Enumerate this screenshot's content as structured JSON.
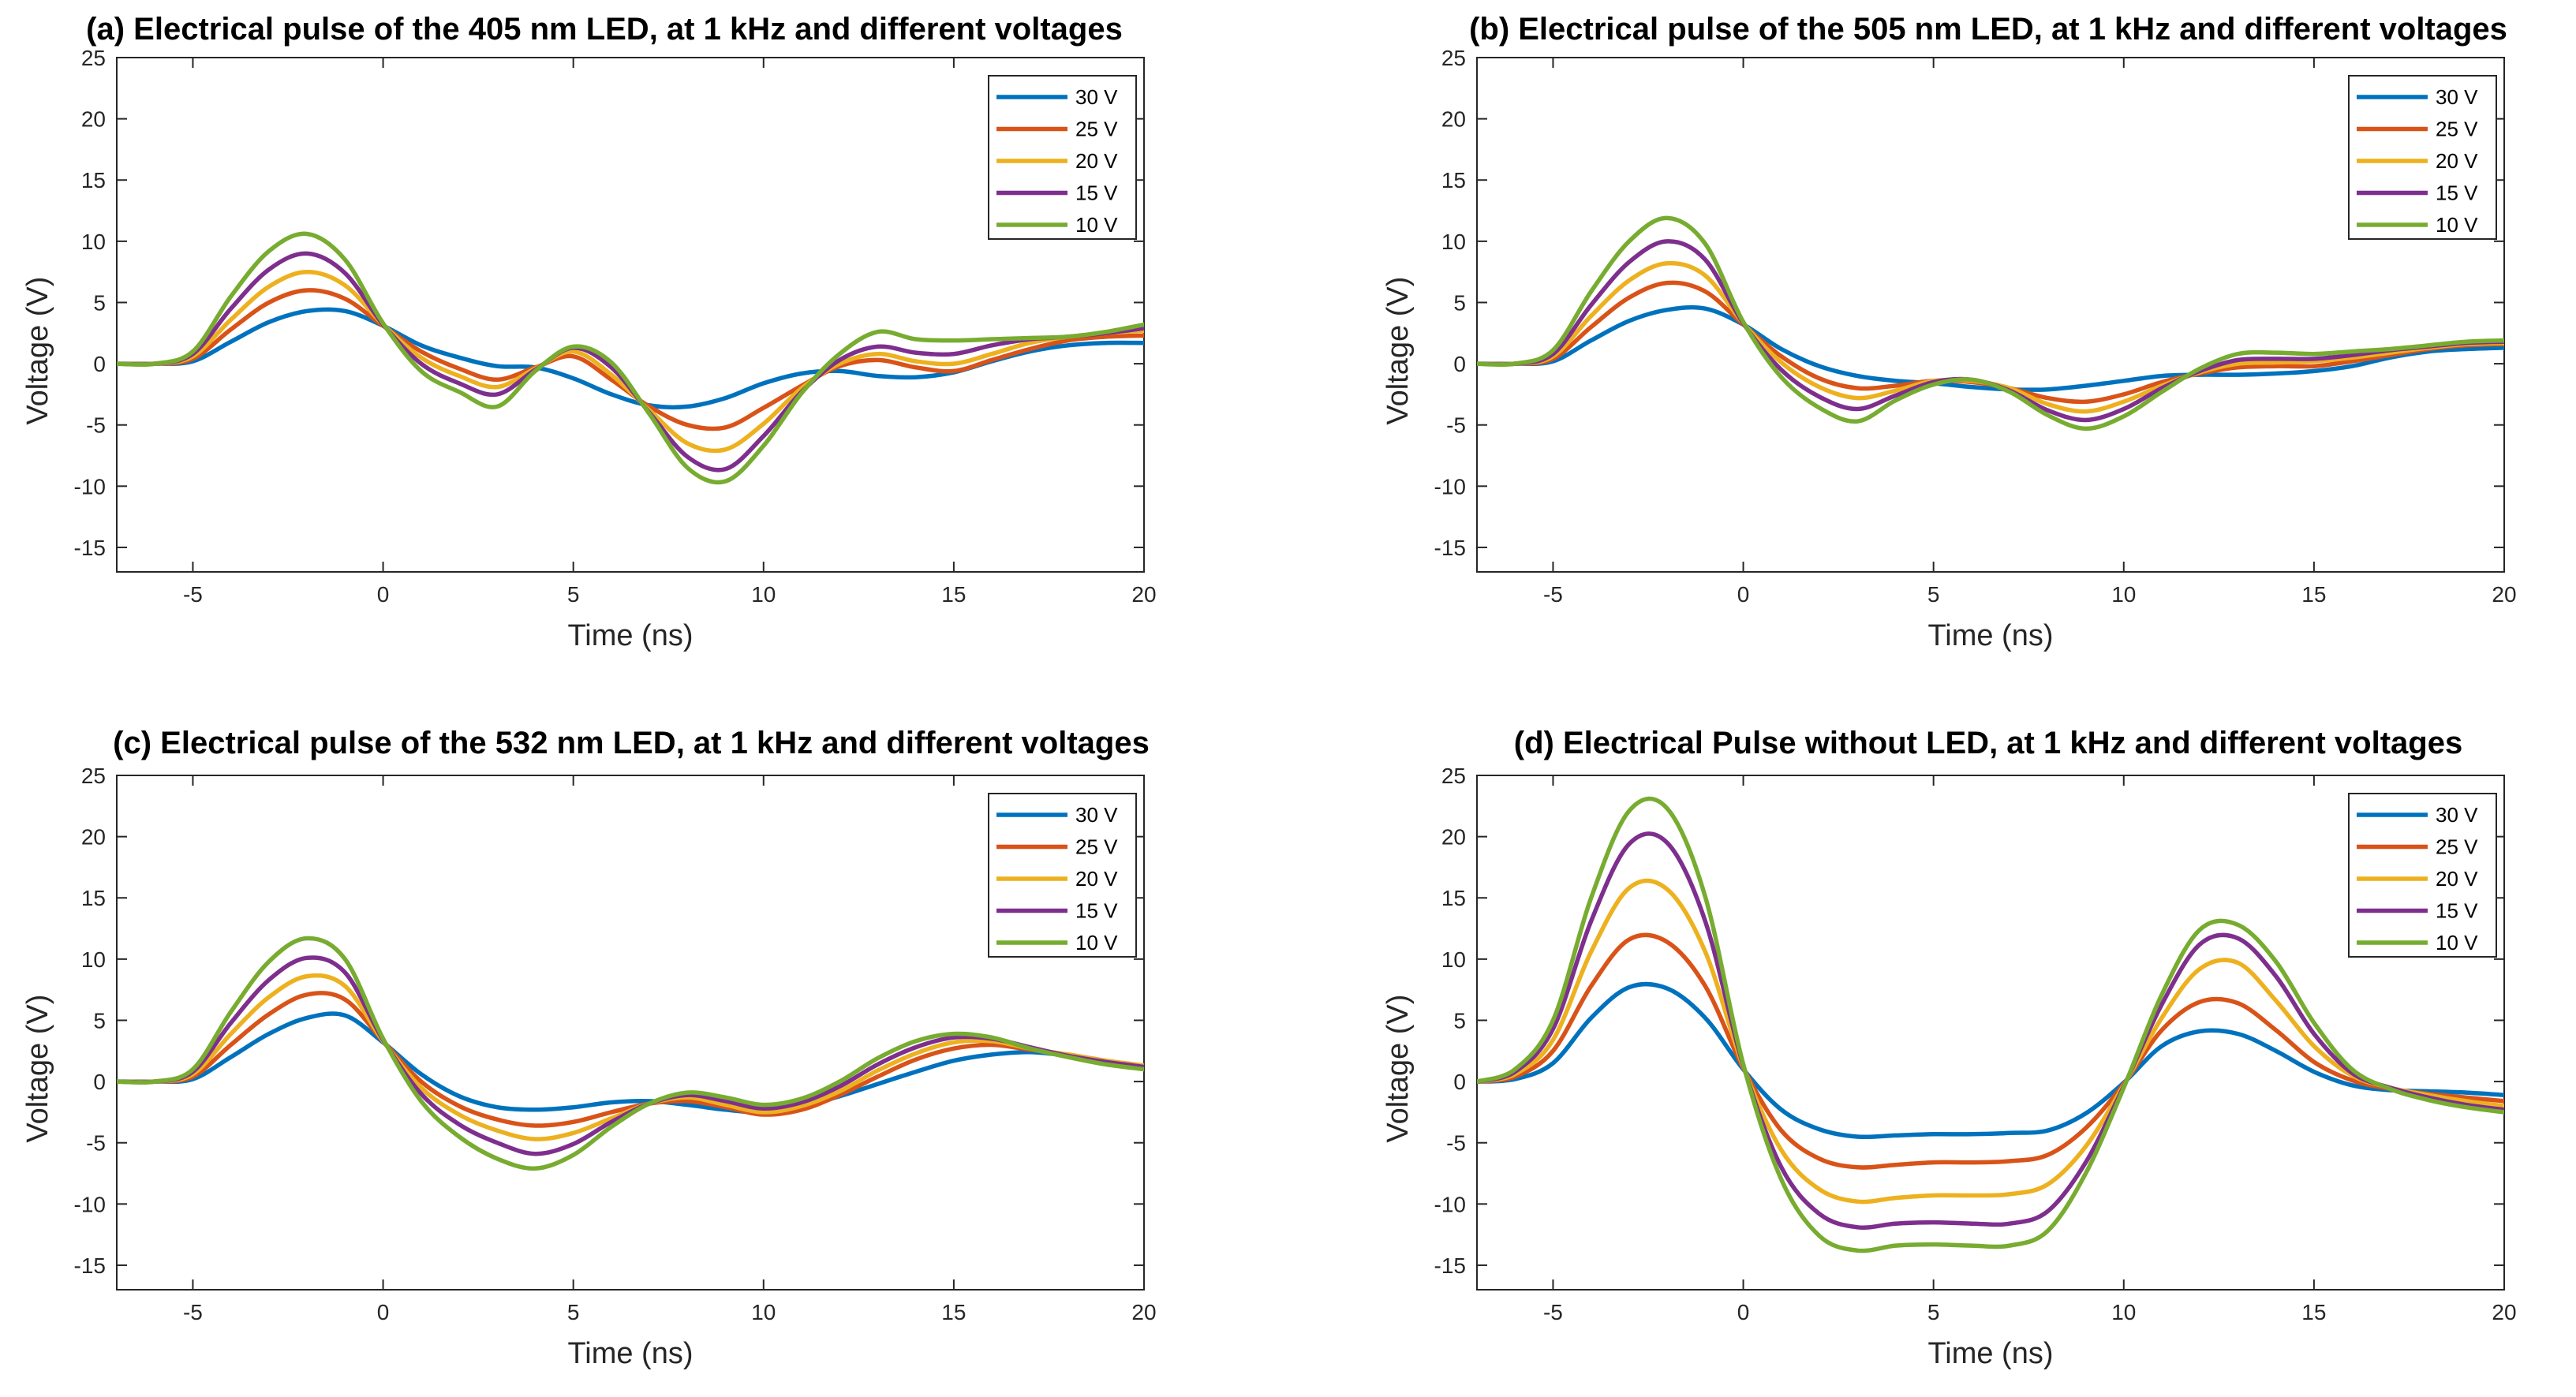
{
  "colors": {
    "s30": "#0072BD",
    "s25": "#D95319",
    "s20": "#EDB120",
    "s15": "#7E2F8E",
    "s10": "#77AC30"
  },
  "chart_data": [
    {
      "type": "line",
      "title": "(a) Electrical pulse of the 405 nm LED, at 1 kHz and different voltages",
      "xlabel": "Time (ns)",
      "ylabel": "Voltage (V)",
      "xlim": [
        -7,
        20
      ],
      "ylim": [
        -17,
        25
      ],
      "xticks": [
        -5,
        0,
        5,
        10,
        15,
        20
      ],
      "yticks": [
        -15,
        -10,
        -5,
        0,
        5,
        10,
        15,
        20,
        25
      ],
      "grid": false,
      "legend_location": "top-right",
      "x": [
        -7,
        -6,
        -5,
        -4,
        -3,
        -2,
        -1,
        0,
        1,
        2,
        3,
        4,
        5,
        6,
        7,
        8,
        9,
        10,
        11,
        12,
        13,
        14,
        15,
        16,
        17,
        18,
        19,
        20
      ],
      "series": [
        {
          "name": "30 V",
          "color_key": "s30",
          "values": [
            0,
            0,
            0.2,
            1.8,
            3.4,
            4.3,
            4.3,
            3.1,
            1.5,
            0.5,
            -0.2,
            -0.3,
            -1.2,
            -2.5,
            -3.4,
            -3.5,
            -2.8,
            -1.6,
            -0.8,
            -0.6,
            -1.0,
            -1.1,
            -0.7,
            0.2,
            1.0,
            1.5,
            1.7,
            1.7
          ]
        },
        {
          "name": "25 V",
          "color_key": "s25",
          "values": [
            0,
            0,
            0.4,
            2.8,
            5.0,
            6.0,
            5.3,
            3.1,
            1.0,
            -0.4,
            -1.3,
            -0.3,
            0.6,
            -1.3,
            -3.5,
            -5.0,
            -5.2,
            -3.6,
            -1.8,
            -0.2,
            0.3,
            -0.3,
            -0.6,
            0.3,
            1.2,
            1.9,
            2.2,
            2.3
          ]
        },
        {
          "name": "20 V",
          "color_key": "s20",
          "values": [
            0,
            0,
            0.6,
            3.6,
            6.3,
            7.5,
            6.4,
            3.2,
            0.5,
            -1.0,
            -1.9,
            -0.4,
            1.0,
            -0.9,
            -3.8,
            -6.5,
            -7.0,
            -4.9,
            -2.0,
            0.0,
            0.8,
            0.2,
            0.0,
            0.8,
            1.7,
            2.2,
            2.5,
            2.7
          ]
        },
        {
          "name": "15 V",
          "color_key": "s15",
          "values": [
            0,
            0,
            0.8,
            4.5,
            7.7,
            9.0,
            7.4,
            3.2,
            0.0,
            -1.6,
            -2.5,
            -0.5,
            1.3,
            -0.3,
            -4.0,
            -7.6,
            -8.6,
            -5.9,
            -2.3,
            0.3,
            1.4,
            0.9,
            0.8,
            1.5,
            2.0,
            2.2,
            2.5,
            2.9
          ]
        },
        {
          "name": "10 V",
          "color_key": "s10",
          "values": [
            0,
            0,
            1.0,
            5.5,
            9.2,
            10.6,
            8.5,
            3.3,
            -0.6,
            -2.3,
            -3.5,
            -0.6,
            1.4,
            0.1,
            -4.1,
            -8.5,
            -9.6,
            -6.7,
            -2.4,
            0.8,
            2.6,
            2.0,
            1.9,
            2.0,
            2.1,
            2.2,
            2.6,
            3.2
          ]
        }
      ]
    },
    {
      "type": "line",
      "title": "(b) Electrical pulse of the 505 nm LED, at 1 kHz and different voltages",
      "xlabel": "Time (ns)",
      "ylabel": "Voltage (V)",
      "xlim": [
        -7,
        20
      ],
      "ylim": [
        -17,
        25
      ],
      "xticks": [
        -5,
        0,
        5,
        10,
        15,
        20
      ],
      "yticks": [
        -15,
        -10,
        -5,
        0,
        5,
        10,
        15,
        20,
        25
      ],
      "grid": false,
      "legend_location": "top-right",
      "x": [
        -7,
        -6,
        -5,
        -4,
        -3,
        -2,
        -1,
        0,
        1,
        2,
        3,
        4,
        5,
        6,
        7,
        8,
        9,
        10,
        11,
        12,
        13,
        14,
        15,
        16,
        17,
        18,
        19,
        20
      ],
      "series": [
        {
          "name": "30 V",
          "color_key": "s30",
          "values": [
            0,
            0,
            0.2,
            1.9,
            3.5,
            4.4,
            4.5,
            3.2,
            1.2,
            -0.2,
            -1.0,
            -1.4,
            -1.6,
            -1.9,
            -2.1,
            -2.1,
            -1.8,
            -1.4,
            -1.0,
            -0.9,
            -0.9,
            -0.8,
            -0.6,
            -0.2,
            0.5,
            1.0,
            1.2,
            1.3
          ]
        },
        {
          "name": "25 V",
          "color_key": "s25",
          "values": [
            0,
            0,
            0.4,
            3.0,
            5.4,
            6.6,
            5.9,
            3.2,
            0.6,
            -1.2,
            -2.0,
            -1.8,
            -1.4,
            -1.5,
            -2.0,
            -2.8,
            -3.1,
            -2.5,
            -1.5,
            -0.8,
            -0.3,
            -0.2,
            -0.2,
            0.2,
            0.7,
            1.2,
            1.5,
            1.6
          ]
        },
        {
          "name": "20 V",
          "color_key": "s20",
          "values": [
            0,
            0,
            0.6,
            3.9,
            6.8,
            8.2,
            7.2,
            3.3,
            0.1,
            -1.9,
            -2.8,
            -2.2,
            -1.4,
            -1.4,
            -2.0,
            -3.3,
            -3.9,
            -3.1,
            -1.8,
            -0.7,
            0.0,
            0.1,
            0.2,
            0.5,
            0.9,
            1.3,
            1.6,
            1.7
          ]
        },
        {
          "name": "15 V",
          "color_key": "s15",
          "values": [
            0,
            0,
            0.8,
            4.8,
            8.3,
            10.0,
            8.5,
            3.3,
            -0.5,
            -2.7,
            -3.7,
            -2.6,
            -1.5,
            -1.3,
            -2.2,
            -3.8,
            -4.6,
            -3.7,
            -2.0,
            -0.6,
            0.3,
            0.4,
            0.4,
            0.7,
            1.1,
            1.4,
            1.7,
            1.8
          ]
        },
        {
          "name": "10 V",
          "color_key": "s10",
          "values": [
            0,
            0,
            1.1,
            5.9,
            10.0,
            11.9,
            9.8,
            3.4,
            -1.1,
            -3.6,
            -4.7,
            -3.0,
            -1.7,
            -1.3,
            -2.3,
            -4.2,
            -5.3,
            -4.3,
            -2.3,
            -0.4,
            0.8,
            0.9,
            0.8,
            1.0,
            1.2,
            1.5,
            1.8,
            1.9
          ]
        }
      ]
    },
    {
      "type": "line",
      "title": "(c) Electrical pulse of the 532 nm LED, at 1 kHz and different voltages",
      "xlabel": "Time (ns)",
      "ylabel": "Voltage (V)",
      "xlim": [
        -7,
        20
      ],
      "ylim": [
        -17,
        25
      ],
      "xticks": [
        -5,
        0,
        5,
        10,
        15,
        20
      ],
      "yticks": [
        -15,
        -10,
        -5,
        0,
        5,
        10,
        15,
        20,
        25
      ],
      "grid": false,
      "legend_location": "top-right",
      "x": [
        -7,
        -6,
        -5,
        -4,
        -3,
        -2,
        -1,
        0,
        1,
        2,
        3,
        4,
        5,
        6,
        7,
        8,
        9,
        10,
        11,
        12,
        13,
        14,
        15,
        16,
        17,
        18,
        19,
        20
      ],
      "series": [
        {
          "name": "30 V",
          "color_key": "s30",
          "values": [
            0,
            0,
            0.2,
            2.0,
            3.9,
            5.2,
            5.4,
            3.2,
            0.6,
            -1.2,
            -2.1,
            -2.3,
            -2.1,
            -1.7,
            -1.6,
            -1.9,
            -2.3,
            -2.5,
            -2.0,
            -1.2,
            -0.2,
            0.8,
            1.7,
            2.2,
            2.4,
            2.1,
            1.6,
            1.2
          ]
        },
        {
          "name": "25 V",
          "color_key": "s25",
          "values": [
            0,
            0,
            0.4,
            3.0,
            5.5,
            7.1,
            6.7,
            3.3,
            0.0,
            -2.0,
            -3.1,
            -3.6,
            -3.3,
            -2.5,
            -1.8,
            -1.6,
            -2.1,
            -2.7,
            -2.3,
            -1.1,
            0.4,
            1.8,
            2.7,
            3.0,
            2.6,
            2.2,
            1.7,
            1.3
          ]
        },
        {
          "name": "20 V",
          "color_key": "s20",
          "values": [
            0,
            0,
            0.6,
            3.9,
            6.9,
            8.6,
            7.8,
            3.3,
            -0.5,
            -2.7,
            -4.0,
            -4.7,
            -4.2,
            -3.0,
            -1.8,
            -1.3,
            -1.9,
            -2.5,
            -2.0,
            -0.8,
            0.9,
            2.3,
            3.2,
            3.3,
            2.7,
            2.2,
            1.7,
            1.3
          ]
        },
        {
          "name": "15 V",
          "color_key": "s15",
          "values": [
            0,
            0,
            0.8,
            4.8,
            8.3,
            10.1,
            8.9,
            3.4,
            -1.0,
            -3.5,
            -5.0,
            -5.9,
            -5.1,
            -3.3,
            -1.8,
            -1.1,
            -1.6,
            -2.2,
            -1.7,
            -0.4,
            1.4,
            2.8,
            3.6,
            3.5,
            2.8,
            2.1,
            1.6,
            1.2
          ]
        },
        {
          "name": "10 V",
          "color_key": "s10",
          "values": [
            0,
            0,
            1.0,
            5.7,
            9.8,
            11.7,
            10.0,
            3.5,
            -1.6,
            -4.5,
            -6.3,
            -7.1,
            -6.0,
            -3.7,
            -1.8,
            -0.9,
            -1.3,
            -1.9,
            -1.4,
            0.0,
            1.9,
            3.3,
            3.9,
            3.6,
            2.7,
            2.0,
            1.4,
            1.0
          ]
        }
      ]
    },
    {
      "type": "line",
      "title": "(d) Electrical Pulse without LED, at 1 kHz and different voltages",
      "xlabel": "Time (ns)",
      "ylabel": "Voltage (V)",
      "xlim": [
        -7,
        20
      ],
      "ylim": [
        -17,
        25
      ],
      "xticks": [
        -5,
        0,
        5,
        10,
        15,
        20
      ],
      "yticks": [
        -15,
        -10,
        -5,
        0,
        5,
        10,
        15,
        20,
        25
      ],
      "grid": false,
      "legend_location": "top-right",
      "x": [
        -7,
        -6,
        -5,
        -4,
        -3,
        -2,
        -1,
        0,
        1,
        2,
        3,
        4,
        5,
        6,
        7,
        8,
        9,
        10,
        11,
        12,
        13,
        14,
        15,
        16,
        17,
        18,
        19,
        20
      ],
      "series": [
        {
          "name": "30 V",
          "color_key": "s30",
          "values": [
            0,
            0.2,
            1.5,
            5.2,
            7.7,
            7.6,
            5.2,
            1.0,
            -2.3,
            -3.9,
            -4.5,
            -4.4,
            -4.3,
            -4.3,
            -4.2,
            -4.0,
            -2.6,
            -0.1,
            2.9,
            4.1,
            3.9,
            2.5,
            0.8,
            -0.3,
            -0.7,
            -0.8,
            -0.9,
            -1.1
          ]
        },
        {
          "name": "25 V",
          "color_key": "s25",
          "values": [
            0,
            0.4,
            2.5,
            7.8,
            11.6,
            11.4,
            7.8,
            1.1,
            -4.0,
            -6.3,
            -7.0,
            -6.8,
            -6.6,
            -6.6,
            -6.5,
            -6.0,
            -3.8,
            -0.2,
            4.2,
            6.5,
            6.4,
            4.2,
            1.6,
            0.1,
            -0.6,
            -1.0,
            -1.3,
            -1.6
          ]
        },
        {
          "name": "20 V",
          "color_key": "s20",
          "values": [
            0,
            0.6,
            3.4,
            10.6,
            15.8,
            15.7,
            10.6,
            1.2,
            -5.6,
            -8.8,
            -9.8,
            -9.5,
            -9.3,
            -9.3,
            -9.2,
            -8.4,
            -5.3,
            -0.3,
            5.2,
            9.2,
            9.7,
            6.6,
            2.9,
            0.5,
            -0.5,
            -1.1,
            -1.6,
            -2.0
          ]
        },
        {
          "name": "15 V",
          "color_key": "s15",
          "values": [
            0,
            0.8,
            4.3,
            13.1,
            19.4,
            19.5,
            13.1,
            1.3,
            -7.0,
            -10.8,
            -11.9,
            -11.6,
            -11.5,
            -11.6,
            -11.6,
            -10.6,
            -6.6,
            -0.4,
            6.3,
            11.2,
            11.7,
            8.6,
            3.9,
            0.7,
            -0.5,
            -1.3,
            -1.9,
            -2.3
          ]
        },
        {
          "name": "10 V",
          "color_key": "s10",
          "values": [
            0,
            1.0,
            5.0,
            15.0,
            22.1,
            22.3,
            15.1,
            1.4,
            -8.0,
            -12.6,
            -13.8,
            -13.4,
            -13.3,
            -13.4,
            -13.4,
            -12.2,
            -7.5,
            -0.5,
            7.1,
            12.4,
            12.8,
            9.8,
            4.8,
            1.0,
            -0.6,
            -1.5,
            -2.1,
            -2.5
          ]
        }
      ]
    }
  ]
}
